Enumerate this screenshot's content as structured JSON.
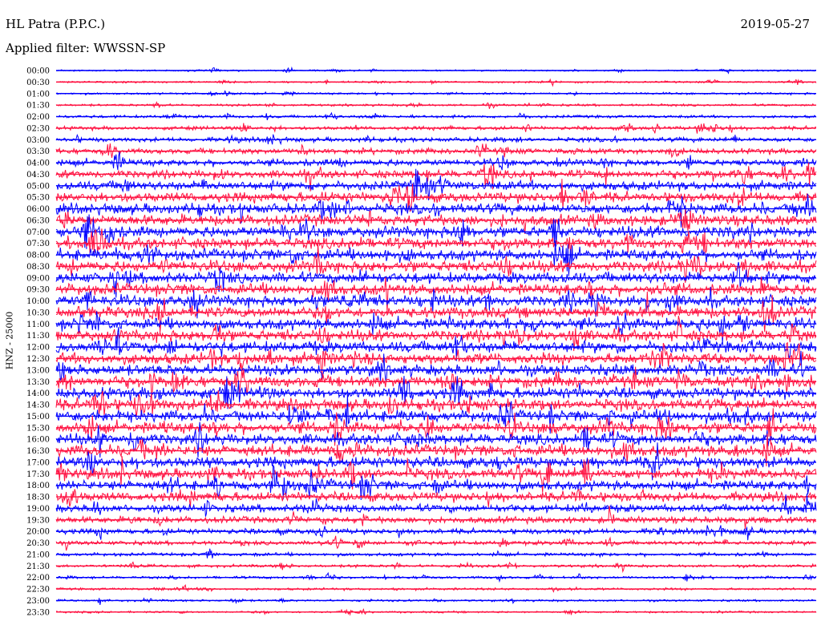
{
  "header": {
    "title": "HL Patra (P.P.C.)",
    "date": "2019-05-27",
    "filter": "Applied filter: WWSSN-SP"
  },
  "chart_data": {
    "type": "line",
    "title": "HL Patra (P.P.C.)",
    "subtitle": "Applied filter: WWSSN-SP",
    "ylabel": "HNZ - 25000",
    "x_unit": "minutes",
    "xlim": [
      0,
      30
    ],
    "categories": [
      "00:00",
      "00:30",
      "01:00",
      "01:30",
      "02:00",
      "02:30",
      "03:00",
      "03:30",
      "04:00",
      "04:30",
      "05:00",
      "05:30",
      "06:00",
      "06:30",
      "07:00",
      "07:30",
      "08:00",
      "08:30",
      "09:00",
      "09:30",
      "10:00",
      "10:30",
      "11:00",
      "11:30",
      "12:00",
      "12:30",
      "13:00",
      "13:30",
      "14:00",
      "14:30",
      "15:00",
      "15:30",
      "16:00",
      "16:30",
      "17:00",
      "17:30",
      "18:00",
      "18:30",
      "19:00",
      "19:30",
      "20:00",
      "20:30",
      "21:00",
      "21:30",
      "22:00",
      "22:30",
      "23:00",
      "23:30"
    ],
    "trace_colors": [
      "#0000ff",
      "#ff1040"
    ],
    "relative_noise_amplitude": [
      0.12,
      0.14,
      0.16,
      0.18,
      0.22,
      0.28,
      0.34,
      0.42,
      0.52,
      0.62,
      0.7,
      0.76,
      0.8,
      0.82,
      0.84,
      0.85,
      0.86,
      0.86,
      0.86,
      0.86,
      0.86,
      0.86,
      0.86,
      0.86,
      0.86,
      0.86,
      0.86,
      0.86,
      0.86,
      0.86,
      0.86,
      0.86,
      0.86,
      0.86,
      0.84,
      0.8,
      0.76,
      0.7,
      0.6,
      0.5,
      0.4,
      0.32,
      0.26,
      0.22,
      0.2,
      0.18,
      0.16,
      0.15
    ],
    "grid": false,
    "legend": "none"
  }
}
